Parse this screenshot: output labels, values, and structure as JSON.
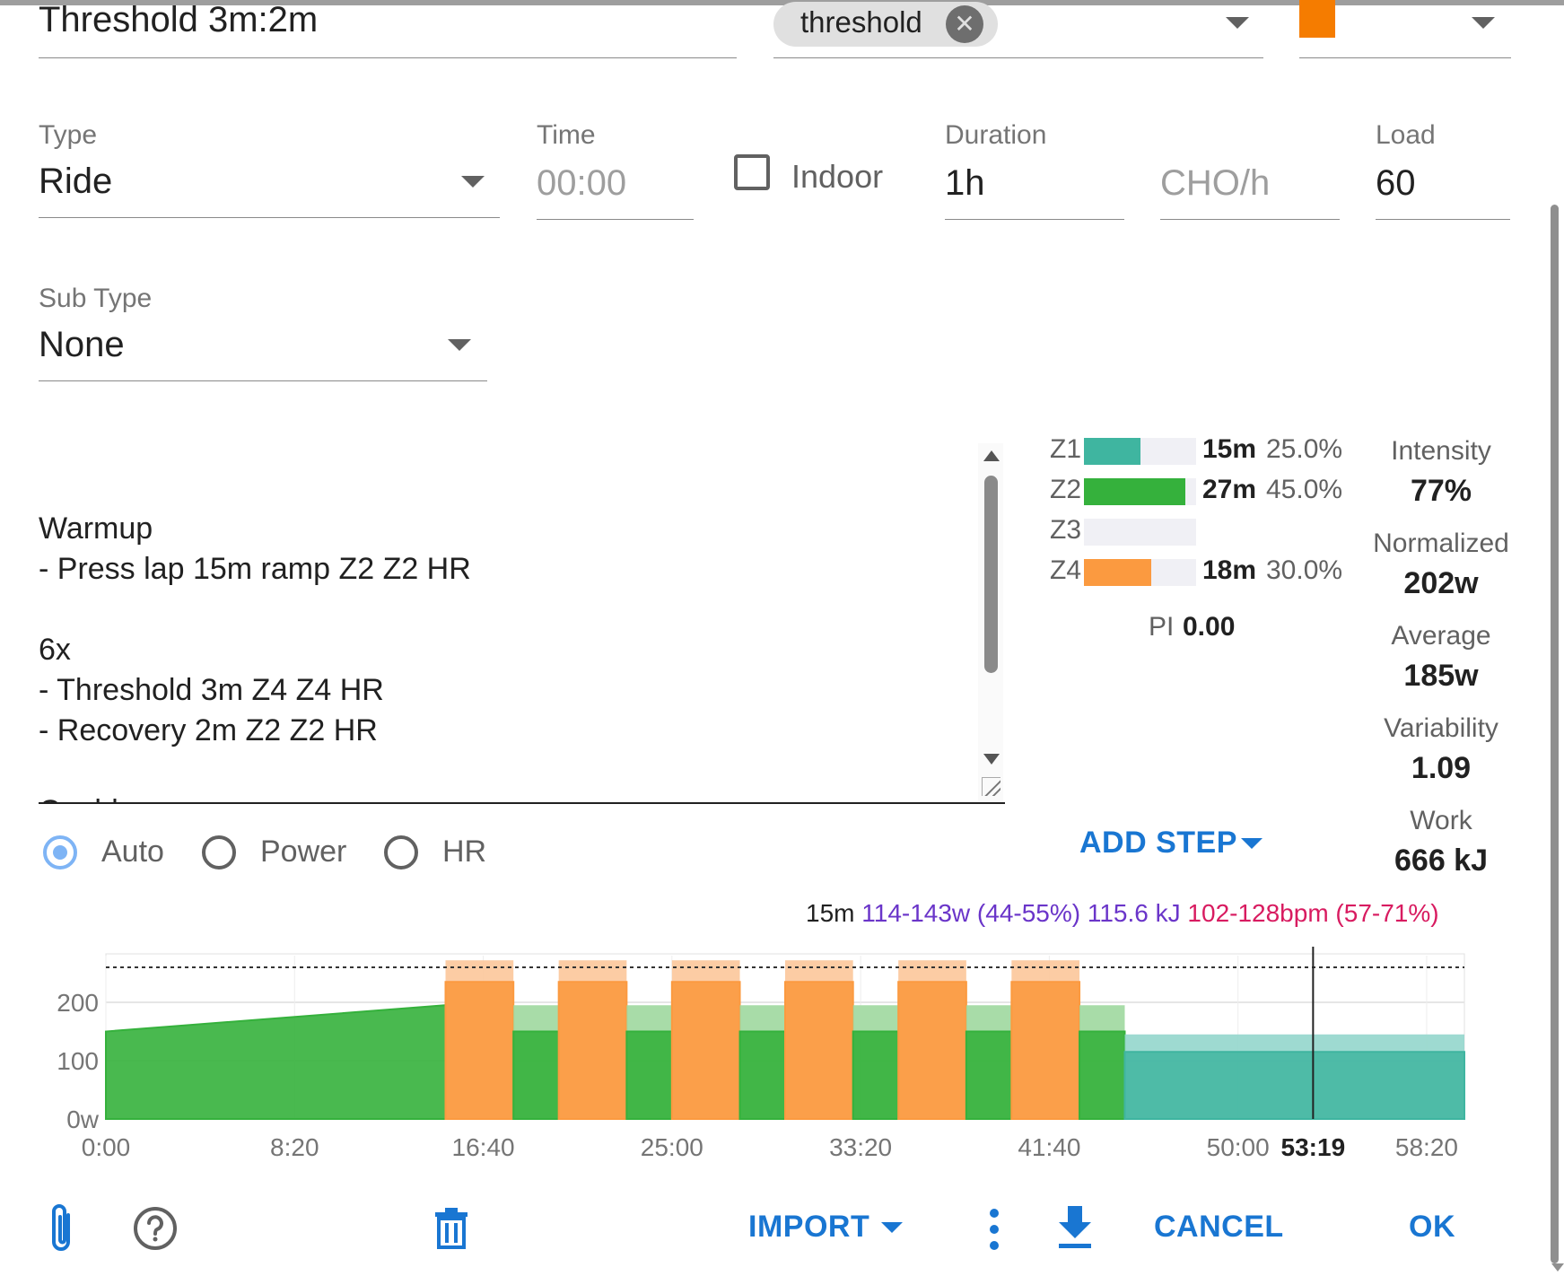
{
  "workout": {
    "name": "Threshold 3m:2m",
    "tag": "threshold",
    "color": "#f57c00"
  },
  "fields": {
    "type_label": "Type",
    "type_value": "Ride",
    "time_label": "Time",
    "time_placeholder": "00:00",
    "indoor_label": "Indoor",
    "indoor_checked": false,
    "duration_label": "Duration",
    "duration_value": "1h",
    "cho_placeholder": "CHO/h",
    "load_label": "Load",
    "load_value": "60",
    "subtype_label": "Sub Type",
    "subtype_value": "None"
  },
  "description_lines": [
    "Warmup",
    "- Press lap 15m ramp Z2 Z2 HR",
    "",
    "6x",
    "- Threshold 3m Z4 Z4 HR",
    "- Recovery 2m Z2 Z2 HR",
    "",
    "Cooldown"
  ],
  "zones": [
    {
      "name": "Z1",
      "time": "15m",
      "pct": "25.0%",
      "fraction": 0.5,
      "color": "#3fb5a0"
    },
    {
      "name": "Z2",
      "time": "27m",
      "pct": "45.0%",
      "fraction": 0.9,
      "color": "#35b13c"
    },
    {
      "name": "Z3",
      "time": "",
      "pct": "",
      "fraction": 0,
      "color": "#ffd400"
    },
    {
      "name": "Z4",
      "time": "18m",
      "pct": "30.0%",
      "fraction": 0.6,
      "color": "#fb9a40"
    }
  ],
  "pi": {
    "label": "PI",
    "value": "0.00"
  },
  "stats": [
    {
      "label": "Intensity",
      "value": "77%"
    },
    {
      "label": "Normalized",
      "value": "202w"
    },
    {
      "label": "Average",
      "value": "185w"
    },
    {
      "label": "Variability",
      "value": "1.09"
    },
    {
      "label": "Work",
      "value": "666 kJ"
    }
  ],
  "target_modes": [
    {
      "label": "Auto",
      "selected": true
    },
    {
      "label": "Power",
      "selected": false
    },
    {
      "label": "HR",
      "selected": false
    }
  ],
  "add_step_label": "ADD STEP",
  "step_info": {
    "duration": "15m",
    "power": "114-143w (44-55%) 115.6 kJ",
    "hr": "102-128bpm (57-71%)",
    "power_color": "#6a35c9",
    "hr_color": "#d81b60"
  },
  "chart_data": {
    "type": "area",
    "xlabel": "",
    "ylabel": "",
    "y_ticks": [
      "0w",
      "100",
      "200"
    ],
    "ylim": [
      0,
      280
    ],
    "threshold_line": 260,
    "x_ticks": [
      "0:00",
      "8:20",
      "16:40",
      "25:00",
      "33:20",
      "41:40",
      "50:00",
      "58:20"
    ],
    "x_tick_seconds": [
      0,
      500,
      1000,
      1500,
      2000,
      2500,
      3000,
      3500
    ],
    "cursor": {
      "label": "53:19",
      "seconds": 3199
    },
    "xlim_seconds": [
      0,
      3600
    ],
    "steps": [
      {
        "start": 0,
        "end": 900,
        "from": 150,
        "to": 195,
        "hr_top": 0,
        "zone": "Z2",
        "color": "#35b13c",
        "band": "#8fd48f"
      },
      {
        "start": 900,
        "end": 1080,
        "from": 235,
        "to": 235,
        "hr_top": 272,
        "zone": "Z4",
        "color": "#fb9a40",
        "band": "#fcc79a"
      },
      {
        "start": 1080,
        "end": 1200,
        "from": 150,
        "to": 150,
        "hr_top": 195,
        "zone": "Z2",
        "color": "#35b13c",
        "band": "#9fd89f"
      },
      {
        "start": 1200,
        "end": 1380,
        "from": 235,
        "to": 235,
        "hr_top": 272,
        "zone": "Z4",
        "color": "#fb9a40",
        "band": "#fcc79a"
      },
      {
        "start": 1380,
        "end": 1500,
        "from": 150,
        "to": 150,
        "hr_top": 195,
        "zone": "Z2",
        "color": "#35b13c",
        "band": "#9fd89f"
      },
      {
        "start": 1500,
        "end": 1680,
        "from": 235,
        "to": 235,
        "hr_top": 272,
        "zone": "Z4",
        "color": "#fb9a40",
        "band": "#fcc79a"
      },
      {
        "start": 1680,
        "end": 1800,
        "from": 150,
        "to": 150,
        "hr_top": 195,
        "zone": "Z2",
        "color": "#35b13c",
        "band": "#9fd89f"
      },
      {
        "start": 1800,
        "end": 1980,
        "from": 235,
        "to": 235,
        "hr_top": 272,
        "zone": "Z4",
        "color": "#fb9a40",
        "band": "#fcc79a"
      },
      {
        "start": 1980,
        "end": 2100,
        "from": 150,
        "to": 150,
        "hr_top": 195,
        "zone": "Z2",
        "color": "#35b13c",
        "band": "#9fd89f"
      },
      {
        "start": 2100,
        "end": 2280,
        "from": 235,
        "to": 235,
        "hr_top": 272,
        "zone": "Z4",
        "color": "#fb9a40",
        "band": "#fcc79a"
      },
      {
        "start": 2280,
        "end": 2400,
        "from": 150,
        "to": 150,
        "hr_top": 195,
        "zone": "Z2",
        "color": "#35b13c",
        "band": "#9fd89f"
      },
      {
        "start": 2400,
        "end": 2580,
        "from": 235,
        "to": 235,
        "hr_top": 272,
        "zone": "Z4",
        "color": "#fb9a40",
        "band": "#fcc79a"
      },
      {
        "start": 2580,
        "end": 2700,
        "from": 150,
        "to": 150,
        "hr_top": 195,
        "zone": "Z2",
        "color": "#35b13c",
        "band": "#9fd89f"
      },
      {
        "start": 2700,
        "end": 3600,
        "from": 115,
        "to": 115,
        "hr_top": 145,
        "zone": "Z1",
        "color": "#3fb5a0",
        "band": "#94d6cc"
      }
    ]
  },
  "footer": {
    "import_label": "IMPORT",
    "cancel_label": "CANCEL",
    "ok_label": "OK"
  }
}
